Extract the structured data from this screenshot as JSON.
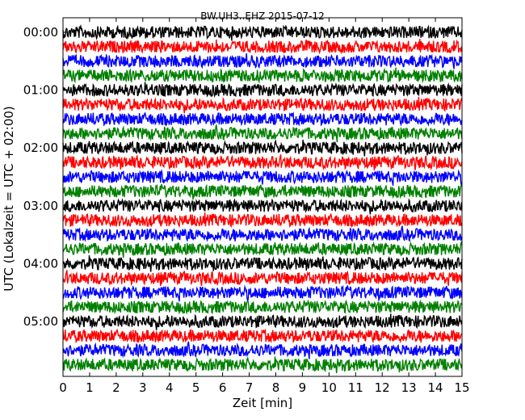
{
  "chart_data": {
    "type": "line",
    "title": "BW.UH3..EHZ 2015-07-12",
    "xlabel": "Zeit  [min]",
    "ylabel": "UTC (Lokalzeit = UTC + 02:00)",
    "xlim": [
      0,
      15
    ],
    "xticks": [
      "0",
      "1",
      "2",
      "3",
      "4",
      "5",
      "6",
      "7",
      "8",
      "9",
      "10",
      "11",
      "12",
      "13",
      "14",
      "15"
    ],
    "yticks": [
      "00:00",
      "01:00",
      "02:00",
      "03:00",
      "04:00",
      "05:00"
    ],
    "grid": false,
    "color_cycle": [
      "#000000",
      "#ff0000",
      "#0000ff",
      "#008000"
    ],
    "rows": 24,
    "minutes_per_row": 15,
    "rows_per_hour": 4
  }
}
